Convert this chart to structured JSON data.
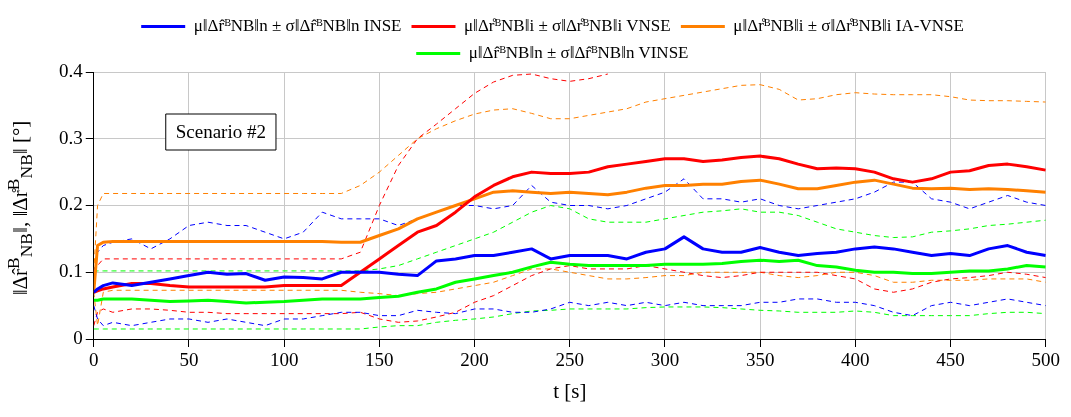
{
  "chart_data": {
    "type": "line",
    "xlabel": "t [s]",
    "ylabel": "‖Δr̂$^{B}$$_{NB}$‖, ‖Δr̊$^{B}$$_{NB}$‖ [°]",
    "annotations": [
      "Scenario #2"
    ],
    "x": [
      0,
      2,
      5,
      10,
      20,
      30,
      40,
      50,
      60,
      70,
      80,
      90,
      100,
      110,
      120,
      130,
      140,
      150,
      160,
      170,
      180,
      190,
      200,
      210,
      220,
      230,
      240,
      250,
      260,
      270,
      280,
      290,
      300,
      310,
      320,
      330,
      340,
      350,
      360,
      370,
      380,
      390,
      400,
      410,
      420,
      430,
      440,
      450,
      460,
      470,
      480,
      490,
      500
    ],
    "xlim": [
      0,
      500
    ],
    "xticks": [
      0,
      50,
      100,
      150,
      200,
      250,
      300,
      350,
      400,
      450,
      500
    ],
    "ylim": [
      0,
      0.4
    ],
    "yticks": [
      0,
      0.1,
      0.2,
      0.3,
      0.4
    ],
    "grid": true,
    "legend": "top",
    "marker": "none",
    "line_style": "solid",
    "series": [
      {
        "name": "μ‖Δr̂ᴮNB‖n ± σ‖Δr̂ᴮNB‖n INSE",
        "color": "#0000ff",
        "values": [
          0.07,
          0.075,
          0.08,
          0.084,
          0.08,
          0.085,
          0.09,
          0.095,
          0.1,
          0.097,
          0.098,
          0.088,
          0.093,
          0.092,
          0.09,
          0.1,
          0.1,
          0.1,
          0.097,
          0.095,
          0.117,
          0.12,
          0.125,
          0.125,
          0.13,
          0.135,
          0.12,
          0.125,
          0.125,
          0.125,
          0.12,
          0.13,
          0.135,
          0.153,
          0.135,
          0.13,
          0.13,
          0.137,
          0.13,
          0.125,
          0.128,
          0.13,
          0.135,
          0.138,
          0.135,
          0.13,
          0.125,
          0.128,
          0.125,
          0.135,
          0.14,
          0.13,
          0.125
        ]
      },
      {
        "name": "μ‖Δr̊ᴮNB‖i ± σ‖Δr̊ᴮNB‖i VNSE",
        "color": "#ff0000",
        "values": [
          0.07,
          0.072,
          0.075,
          0.078,
          0.083,
          0.083,
          0.08,
          0.078,
          0.078,
          0.078,
          0.078,
          0.078,
          0.08,
          0.08,
          0.08,
          0.08,
          0.1,
          0.12,
          0.14,
          0.16,
          0.17,
          0.19,
          0.213,
          0.23,
          0.243,
          0.25,
          0.248,
          0.248,
          0.25,
          0.258,
          0.262,
          0.266,
          0.27,
          0.27,
          0.266,
          0.268,
          0.272,
          0.274,
          0.27,
          0.262,
          0.255,
          0.256,
          0.255,
          0.25,
          0.24,
          0.235,
          0.24,
          0.25,
          0.252,
          0.26,
          0.262,
          0.258,
          0.253
        ]
      },
      {
        "name": "μ‖Δr̊ᴮNB‖i ± σ‖Δr̊ᴮNB‖i IA-VNSE",
        "color": "#ff8000",
        "values": [
          0.07,
          0.14,
          0.145,
          0.146,
          0.146,
          0.146,
          0.146,
          0.146,
          0.146,
          0.146,
          0.146,
          0.146,
          0.146,
          0.146,
          0.146,
          0.145,
          0.145,
          0.155,
          0.165,
          0.18,
          0.19,
          0.2,
          0.21,
          0.22,
          0.222,
          0.22,
          0.218,
          0.22,
          0.218,
          0.216,
          0.22,
          0.226,
          0.23,
          0.23,
          0.232,
          0.232,
          0.236,
          0.238,
          0.232,
          0.225,
          0.225,
          0.23,
          0.235,
          0.238,
          0.232,
          0.226,
          0.225,
          0.226,
          0.224,
          0.225,
          0.224,
          0.222,
          0.22
        ]
      },
      {
        "name": "μ‖Δr̂ᴮNB‖n ± σ‖Δr̂ᴮNB‖n VINSE",
        "color": "#00ff00",
        "values": [
          0.058,
          0.058,
          0.06,
          0.06,
          0.06,
          0.058,
          0.056,
          0.057,
          0.058,
          0.056,
          0.054,
          0.055,
          0.056,
          0.058,
          0.06,
          0.06,
          0.06,
          0.062,
          0.064,
          0.07,
          0.075,
          0.085,
          0.09,
          0.095,
          0.1,
          0.108,
          0.115,
          0.112,
          0.11,
          0.11,
          0.11,
          0.11,
          0.112,
          0.112,
          0.112,
          0.113,
          0.116,
          0.118,
          0.116,
          0.118,
          0.11,
          0.108,
          0.103,
          0.1,
          0.1,
          0.098,
          0.098,
          0.1,
          0.102,
          0.102,
          0.105,
          0.11,
          0.108
        ]
      },
      {
        "type": "line",
        "color": "#0000ff",
        "line_style": "dashed",
        "values": [
          0.1,
          0.13,
          0.14,
          0.145,
          0.15,
          0.135,
          0.15,
          0.17,
          0.175,
          0.17,
          0.17,
          0.16,
          0.15,
          0.16,
          0.19,
          0.18,
          0.18,
          0.18,
          0.17,
          0.18,
          0.19,
          0.2,
          0.2,
          0.195,
          0.2,
          0.23,
          0.205,
          0.2,
          0.2,
          0.195,
          0.2,
          0.21,
          0.22,
          0.24,
          0.21,
          0.21,
          0.205,
          0.21,
          0.2,
          0.195,
          0.2,
          0.205,
          0.21,
          0.22,
          0.235,
          0.235,
          0.21,
          0.205,
          0.195,
          0.205,
          0.215,
          0.205,
          0.2
        ]
      },
      {
        "type": "line",
        "color": "#0000ff",
        "line_style": "dashed",
        "values": [
          0.05,
          0.03,
          0.02,
          0.025,
          0.02,
          0.025,
          0.03,
          0.03,
          0.025,
          0.03,
          0.025,
          0.02,
          0.03,
          0.03,
          0.035,
          0.04,
          0.04,
          0.035,
          0.035,
          0.043,
          0.04,
          0.038,
          0.045,
          0.045,
          0.04,
          0.04,
          0.045,
          0.055,
          0.05,
          0.055,
          0.05,
          0.055,
          0.05,
          0.055,
          0.05,
          0.05,
          0.05,
          0.055,
          0.055,
          0.06,
          0.06,
          0.055,
          0.055,
          0.05,
          0.04,
          0.035,
          0.05,
          0.055,
          0.05,
          0.055,
          0.06,
          0.055,
          0.05
        ]
      },
      {
        "type": "line",
        "color": "#ff0000",
        "line_style": "dashed",
        "x": [
          0,
          2,
          5,
          10,
          20,
          30,
          40,
          50,
          60,
          70,
          80,
          90,
          100,
          110,
          120,
          130,
          140,
          150,
          160,
          170,
          180,
          190,
          200,
          210,
          220,
          230,
          240,
          250,
          260,
          270
        ],
        "values": [
          0.1,
          0.11,
          0.12,
          0.12,
          0.12,
          0.12,
          0.12,
          0.12,
          0.12,
          0.12,
          0.12,
          0.12,
          0.12,
          0.12,
          0.12,
          0.12,
          0.13,
          0.2,
          0.26,
          0.3,
          0.322,
          0.345,
          0.368,
          0.385,
          0.395,
          0.397,
          0.39,
          0.386,
          0.39,
          0.397
        ]
      },
      {
        "type": "line",
        "color": "#ff0000",
        "line_style": "dashed",
        "values": [
          0.02,
          0.04,
          0.045,
          0.04,
          0.045,
          0.045,
          0.043,
          0.04,
          0.04,
          0.038,
          0.038,
          0.038,
          0.038,
          0.038,
          0.038,
          0.038,
          0.04,
          0.03,
          0.025,
          0.027,
          0.033,
          0.04,
          0.055,
          0.065,
          0.08,
          0.095,
          0.105,
          0.11,
          0.105,
          0.105,
          0.105,
          0.11,
          0.105,
          0.1,
          0.095,
          0.092,
          0.095,
          0.1,
          0.1,
          0.1,
          0.1,
          0.095,
          0.09,
          0.075,
          0.07,
          0.075,
          0.085,
          0.09,
          0.092,
          0.095,
          0.1,
          0.097,
          0.092
        ]
      },
      {
        "type": "line",
        "color": "#ff8000",
        "line_style": "dashed",
        "values": [
          0.1,
          0.2,
          0.218,
          0.218,
          0.218,
          0.218,
          0.218,
          0.218,
          0.218,
          0.218,
          0.218,
          0.218,
          0.218,
          0.218,
          0.218,
          0.218,
          0.23,
          0.25,
          0.275,
          0.3,
          0.315,
          0.327,
          0.337,
          0.343,
          0.345,
          0.338,
          0.33,
          0.33,
          0.335,
          0.34,
          0.345,
          0.355,
          0.36,
          0.365,
          0.37,
          0.375,
          0.38,
          0.381,
          0.374,
          0.358,
          0.36,
          0.366,
          0.369,
          0.367,
          0.366,
          0.366,
          0.366,
          0.363,
          0.358,
          0.357,
          0.357,
          0.356,
          0.355
        ]
      },
      {
        "type": "line",
        "color": "#ff8000",
        "line_style": "dashed",
        "values": [
          0.07,
          0.02,
          0.07,
          0.073,
          0.073,
          0.073,
          0.073,
          0.073,
          0.073,
          0.073,
          0.073,
          0.073,
          0.073,
          0.073,
          0.073,
          0.073,
          0.07,
          0.068,
          0.065,
          0.068,
          0.07,
          0.075,
          0.08,
          0.085,
          0.095,
          0.105,
          0.105,
          0.1,
          0.095,
          0.09,
          0.09,
          0.092,
          0.095,
          0.095,
          0.1,
          0.1,
          0.1,
          0.1,
          0.095,
          0.092,
          0.095,
          0.1,
          0.1,
          0.095,
          0.085,
          0.085,
          0.088,
          0.088,
          0.088,
          0.09,
          0.09,
          0.09,
          0.085
        ]
      },
      {
        "type": "line",
        "color": "#00ff00",
        "line_style": "dashed",
        "values": [
          0.1,
          0.102,
          0.102,
          0.102,
          0.102,
          0.102,
          0.102,
          0.102,
          0.102,
          0.102,
          0.102,
          0.102,
          0.102,
          0.102,
          0.102,
          0.102,
          0.102,
          0.105,
          0.11,
          0.12,
          0.13,
          0.14,
          0.15,
          0.16,
          0.175,
          0.19,
          0.2,
          0.195,
          0.18,
          0.175,
          0.175,
          0.175,
          0.18,
          0.185,
          0.19,
          0.192,
          0.195,
          0.19,
          0.19,
          0.185,
          0.175,
          0.165,
          0.16,
          0.155,
          0.152,
          0.153,
          0.16,
          0.162,
          0.165,
          0.17,
          0.172,
          0.175,
          0.178
        ]
      },
      {
        "type": "line",
        "color": "#00ff00",
        "line_style": "dashed",
        "values": [
          0.015,
          0.015,
          0.015,
          0.015,
          0.015,
          0.015,
          0.015,
          0.015,
          0.015,
          0.015,
          0.015,
          0.015,
          0.015,
          0.015,
          0.015,
          0.015,
          0.015,
          0.018,
          0.02,
          0.02,
          0.025,
          0.028,
          0.03,
          0.033,
          0.038,
          0.042,
          0.043,
          0.045,
          0.045,
          0.045,
          0.045,
          0.047,
          0.048,
          0.048,
          0.048,
          0.047,
          0.045,
          0.043,
          0.042,
          0.04,
          0.04,
          0.04,
          0.042,
          0.04,
          0.035,
          0.035,
          0.035,
          0.035,
          0.035,
          0.038,
          0.04,
          0.04,
          0.038
        ]
      }
    ]
  }
}
